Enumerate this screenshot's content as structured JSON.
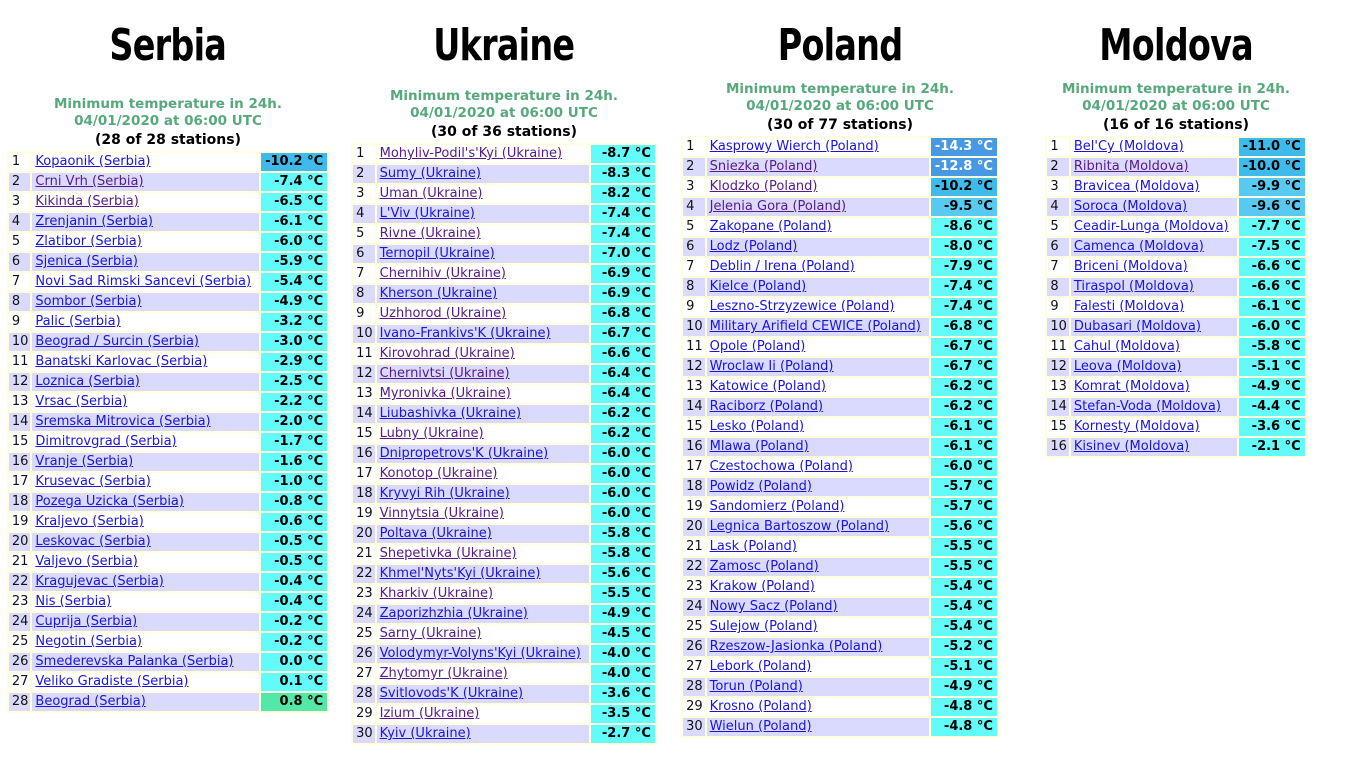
{
  "unit": "°C",
  "colors": {
    "link": "#1a14e0",
    "link_visited": "#551a8b",
    "row": "#ffffff",
    "row_alt": "#dadaff",
    "table_bg": "#ffffdd",
    "heading_green": "#56a97c",
    "text": "#000000"
  },
  "color_scale": [
    {
      "max": -12.5,
      "bg": "#4699e2",
      "fg": "#ffffff"
    },
    {
      "max": -10.0,
      "bg": "#3fbbeb",
      "fg": "#000000"
    },
    {
      "max": -9.0,
      "bg": "#58caf2",
      "fg": "#000000"
    },
    {
      "max": 0.4,
      "bg": "#63fafa",
      "fg": "#000000"
    },
    {
      "max": 999,
      "bg": "#53e8a7",
      "fg": "#000000"
    }
  ],
  "subtitle": {
    "line1": "Minimum temperature in 24h.",
    "line2": "04/01/2020 at 06:00 UTC"
  },
  "countries": [
    {
      "title": "Serbia",
      "stations_label": "(28 of 28 stations)",
      "rows": [
        {
          "rank": 1,
          "station": "Kopaonik (Serbia)",
          "temp": -10.2,
          "visited": false
        },
        {
          "rank": 2,
          "station": "Crni Vrh (Serbia)",
          "temp": -7.4,
          "visited": true
        },
        {
          "rank": 3,
          "station": "Kikinda (Serbia)",
          "temp": -6.5,
          "visited": true
        },
        {
          "rank": 4,
          "station": "Zrenjanin (Serbia)",
          "temp": -6.1,
          "visited": false
        },
        {
          "rank": 5,
          "station": "Zlatibor (Serbia)",
          "temp": -6.0,
          "visited": false
        },
        {
          "rank": 6,
          "station": "Sjenica (Serbia)",
          "temp": -5.9,
          "visited": false
        },
        {
          "rank": 7,
          "station": "Novi Sad Rimski Sancevi (Serbia)",
          "temp": -5.4,
          "visited": false
        },
        {
          "rank": 8,
          "station": "Sombor (Serbia)",
          "temp": -4.9,
          "visited": false
        },
        {
          "rank": 9,
          "station": "Palic (Serbia)",
          "temp": -3.2,
          "visited": false
        },
        {
          "rank": 10,
          "station": "Beograd / Surcin (Serbia)",
          "temp": -3.0,
          "visited": false
        },
        {
          "rank": 11,
          "station": "Banatski Karlovac (Serbia)",
          "temp": -2.9,
          "visited": false
        },
        {
          "rank": 12,
          "station": "Loznica (Serbia)",
          "temp": -2.5,
          "visited": false
        },
        {
          "rank": 13,
          "station": "Vrsac (Serbia)",
          "temp": -2.2,
          "visited": false
        },
        {
          "rank": 14,
          "station": "Sremska Mitrovica (Serbia)",
          "temp": -2.0,
          "visited": false
        },
        {
          "rank": 15,
          "station": "Dimitrovgrad (Serbia)",
          "temp": -1.7,
          "visited": false
        },
        {
          "rank": 16,
          "station": "Vranje (Serbia)",
          "temp": -1.6,
          "visited": false
        },
        {
          "rank": 17,
          "station": "Krusevac (Serbia)",
          "temp": -1.0,
          "visited": false
        },
        {
          "rank": 18,
          "station": "Pozega Uzicka (Serbia)",
          "temp": -0.8,
          "visited": false
        },
        {
          "rank": 19,
          "station": "Kraljevo (Serbia)",
          "temp": -0.6,
          "visited": false
        },
        {
          "rank": 20,
          "station": "Leskovac (Serbia)",
          "temp": -0.5,
          "visited": false
        },
        {
          "rank": 21,
          "station": "Valjevo (Serbia)",
          "temp": -0.5,
          "visited": false
        },
        {
          "rank": 22,
          "station": "Kragujevac (Serbia)",
          "temp": -0.4,
          "visited": false
        },
        {
          "rank": 23,
          "station": "Nis (Serbia)",
          "temp": -0.4,
          "visited": false
        },
        {
          "rank": 24,
          "station": "Cuprija (Serbia)",
          "temp": -0.2,
          "visited": false
        },
        {
          "rank": 25,
          "station": "Negotin (Serbia)",
          "temp": -0.2,
          "visited": false
        },
        {
          "rank": 26,
          "station": "Smederevska Palanka (Serbia)",
          "temp": 0.0,
          "visited": false
        },
        {
          "rank": 27,
          "station": "Veliko Gradiste (Serbia)",
          "temp": 0.1,
          "visited": false
        },
        {
          "rank": 28,
          "station": "Beograd (Serbia)",
          "temp": 0.8,
          "visited": false
        }
      ]
    },
    {
      "title": "Ukraine",
      "stations_label": "(30 of 36 stations)",
      "rows": [
        {
          "rank": 1,
          "station": "Mohyliv-Podil's'Kyi (Ukraine)",
          "temp": -8.7,
          "visited": true
        },
        {
          "rank": 2,
          "station": "Sumy (Ukraine)",
          "temp": -8.3,
          "visited": false
        },
        {
          "rank": 3,
          "station": "Uman (Ukraine)",
          "temp": -8.2,
          "visited": true
        },
        {
          "rank": 4,
          "station": "L'Viv (Ukraine)",
          "temp": -7.4,
          "visited": false
        },
        {
          "rank": 5,
          "station": "Rivne (Ukraine)",
          "temp": -7.4,
          "visited": true
        },
        {
          "rank": 6,
          "station": "Ternopil (Ukraine)",
          "temp": -7.0,
          "visited": false
        },
        {
          "rank": 7,
          "station": "Chernihiv (Ukraine)",
          "temp": -6.9,
          "visited": true
        },
        {
          "rank": 8,
          "station": "Kherson (Ukraine)",
          "temp": -6.9,
          "visited": false
        },
        {
          "rank": 9,
          "station": "Uzhhorod (Ukraine)",
          "temp": -6.8,
          "visited": true
        },
        {
          "rank": 10,
          "station": "Ivano-Frankivs'K (Ukraine)",
          "temp": -6.7,
          "visited": false
        },
        {
          "rank": 11,
          "station": "Kirovohrad (Ukraine)",
          "temp": -6.6,
          "visited": true
        },
        {
          "rank": 12,
          "station": "Chernivtsi (Ukraine)",
          "temp": -6.4,
          "visited": true
        },
        {
          "rank": 13,
          "station": "Myronivka (Ukraine)",
          "temp": -6.4,
          "visited": true
        },
        {
          "rank": 14,
          "station": "Liubashivka (Ukraine)",
          "temp": -6.2,
          "visited": false
        },
        {
          "rank": 15,
          "station": "Lubny (Ukraine)",
          "temp": -6.2,
          "visited": true
        },
        {
          "rank": 16,
          "station": "Dnipropetrovs'K (Ukraine)",
          "temp": -6.0,
          "visited": false
        },
        {
          "rank": 17,
          "station": "Konotop (Ukraine)",
          "temp": -6.0,
          "visited": true
        },
        {
          "rank": 18,
          "station": "Kryvyi Rih (Ukraine)",
          "temp": -6.0,
          "visited": false
        },
        {
          "rank": 19,
          "station": "Vinnytsia (Ukraine)",
          "temp": -6.0,
          "visited": true
        },
        {
          "rank": 20,
          "station": "Poltava (Ukraine)",
          "temp": -5.8,
          "visited": false
        },
        {
          "rank": 21,
          "station": "Shepetivka (Ukraine)",
          "temp": -5.8,
          "visited": true
        },
        {
          "rank": 22,
          "station": "Khmel'Nyts'Kyi (Ukraine)",
          "temp": -5.6,
          "visited": false
        },
        {
          "rank": 23,
          "station": "Kharkiv (Ukraine)",
          "temp": -5.5,
          "visited": true
        },
        {
          "rank": 24,
          "station": "Zaporizhzhia (Ukraine)",
          "temp": -4.9,
          "visited": false
        },
        {
          "rank": 25,
          "station": "Sarny (Ukraine)",
          "temp": -4.5,
          "visited": true
        },
        {
          "rank": 26,
          "station": "Volodymyr-Volyns'Kyi (Ukraine)",
          "temp": -4.0,
          "visited": false
        },
        {
          "rank": 27,
          "station": "Zhytomyr (Ukraine)",
          "temp": -4.0,
          "visited": true
        },
        {
          "rank": 28,
          "station": "Svitlovods'K (Ukraine)",
          "temp": -3.6,
          "visited": false
        },
        {
          "rank": 29,
          "station": "Izium (Ukraine)",
          "temp": -3.5,
          "visited": true
        },
        {
          "rank": 30,
          "station": "Kyiv (Ukraine)",
          "temp": -2.7,
          "visited": false
        }
      ]
    },
    {
      "title": "Poland",
      "stations_label": "(30 of 77 stations)",
      "rows": [
        {
          "rank": 1,
          "station": "Kasprowy Wierch (Poland)",
          "temp": -14.3,
          "visited": false
        },
        {
          "rank": 2,
          "station": "Sniezka (Poland)",
          "temp": -12.8,
          "visited": true
        },
        {
          "rank": 3,
          "station": "Klodzko (Poland)",
          "temp": -10.2,
          "visited": true
        },
        {
          "rank": 4,
          "station": "Jelenia Gora (Poland)",
          "temp": -9.5,
          "visited": true
        },
        {
          "rank": 5,
          "station": "Zakopane (Poland)",
          "temp": -8.6,
          "visited": false
        },
        {
          "rank": 6,
          "station": "Lodz (Poland)",
          "temp": -8.0,
          "visited": false
        },
        {
          "rank": 7,
          "station": "Deblin / Irena (Poland)",
          "temp": -7.9,
          "visited": false
        },
        {
          "rank": 8,
          "station": "Kielce (Poland)",
          "temp": -7.4,
          "visited": false
        },
        {
          "rank": 9,
          "station": "Leszno-Strzyzewice (Poland)",
          "temp": -7.4,
          "visited": false
        },
        {
          "rank": 10,
          "station": "Military Arifield CEWICE (Poland)",
          "temp": -6.8,
          "visited": false
        },
        {
          "rank": 11,
          "station": "Opole (Poland)",
          "temp": -6.7,
          "visited": false
        },
        {
          "rank": 12,
          "station": "Wroclaw Ii (Poland)",
          "temp": -6.7,
          "visited": false
        },
        {
          "rank": 13,
          "station": "Katowice (Poland)",
          "temp": -6.2,
          "visited": false
        },
        {
          "rank": 14,
          "station": "Raciborz (Poland)",
          "temp": -6.2,
          "visited": false
        },
        {
          "rank": 15,
          "station": "Lesko (Poland)",
          "temp": -6.1,
          "visited": false
        },
        {
          "rank": 16,
          "station": "Mlawa (Poland)",
          "temp": -6.1,
          "visited": false
        },
        {
          "rank": 17,
          "station": "Czestochowa (Poland)",
          "temp": -6.0,
          "visited": false
        },
        {
          "rank": 18,
          "station": "Powidz (Poland)",
          "temp": -5.7,
          "visited": false
        },
        {
          "rank": 19,
          "station": "Sandomierz (Poland)",
          "temp": -5.7,
          "visited": false
        },
        {
          "rank": 20,
          "station": "Legnica Bartoszow (Poland)",
          "temp": -5.6,
          "visited": false
        },
        {
          "rank": 21,
          "station": "Lask (Poland)",
          "temp": -5.5,
          "visited": false
        },
        {
          "rank": 22,
          "station": "Zamosc (Poland)",
          "temp": -5.5,
          "visited": false
        },
        {
          "rank": 23,
          "station": "Krakow (Poland)",
          "temp": -5.4,
          "visited": false
        },
        {
          "rank": 24,
          "station": "Nowy Sacz (Poland)",
          "temp": -5.4,
          "visited": false
        },
        {
          "rank": 25,
          "station": "Sulejow (Poland)",
          "temp": -5.4,
          "visited": false
        },
        {
          "rank": 26,
          "station": "Rzeszow-Jasionka (Poland)",
          "temp": -5.2,
          "visited": false
        },
        {
          "rank": 27,
          "station": "Lebork (Poland)",
          "temp": -5.1,
          "visited": false
        },
        {
          "rank": 28,
          "station": "Torun (Poland)",
          "temp": -4.9,
          "visited": false
        },
        {
          "rank": 29,
          "station": "Krosno (Poland)",
          "temp": -4.8,
          "visited": false
        },
        {
          "rank": 30,
          "station": "Wielun (Poland)",
          "temp": -4.8,
          "visited": false
        }
      ]
    },
    {
      "title": "Moldova",
      "stations_label": "(16 of 16 stations)",
      "rows": [
        {
          "rank": 1,
          "station": "Bel'Cy (Moldova)",
          "temp": -11.0,
          "visited": false
        },
        {
          "rank": 2,
          "station": "Ribnita (Moldova)",
          "temp": -10.0,
          "visited": true
        },
        {
          "rank": 3,
          "station": "Bravicea (Moldova)",
          "temp": -9.9,
          "visited": false
        },
        {
          "rank": 4,
          "station": "Soroca (Moldova)",
          "temp": -9.6,
          "visited": false
        },
        {
          "rank": 5,
          "station": "Ceadir-Lunga (Moldova)",
          "temp": -7.7,
          "visited": false
        },
        {
          "rank": 6,
          "station": "Camenca (Moldova)",
          "temp": -7.5,
          "visited": false
        },
        {
          "rank": 7,
          "station": "Briceni (Moldova)",
          "temp": -6.6,
          "visited": false
        },
        {
          "rank": 8,
          "station": "Tiraspol (Moldova)",
          "temp": -6.6,
          "visited": false
        },
        {
          "rank": 9,
          "station": "Falesti (Moldova)",
          "temp": -6.1,
          "visited": false
        },
        {
          "rank": 10,
          "station": "Dubasari (Moldova)",
          "temp": -6.0,
          "visited": false
        },
        {
          "rank": 11,
          "station": "Cahul (Moldova)",
          "temp": -5.8,
          "visited": false
        },
        {
          "rank": 12,
          "station": "Leova (Moldova)",
          "temp": -5.1,
          "visited": false
        },
        {
          "rank": 13,
          "station": "Komrat (Moldova)",
          "temp": -4.9,
          "visited": false
        },
        {
          "rank": 14,
          "station": "Stefan-Voda (Moldova)",
          "temp": -4.4,
          "visited": false
        },
        {
          "rank": 15,
          "station": "Kornesty (Moldova)",
          "temp": -3.6,
          "visited": false
        },
        {
          "rank": 16,
          "station": "Kisinev (Moldova)",
          "temp": -2.1,
          "visited": false
        }
      ]
    }
  ]
}
